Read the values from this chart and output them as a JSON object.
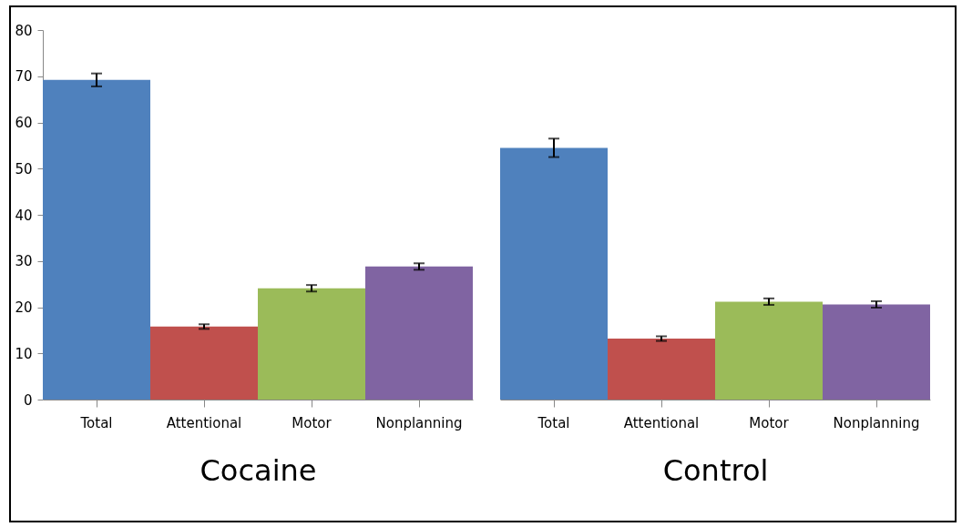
{
  "chart_data": [
    {
      "type": "bar",
      "xlabel": "Cocaine",
      "categories": [
        "Total",
        "Attentional",
        "Motor",
        "Nonplanning"
      ],
      "values": [
        69.2,
        15.8,
        24.1,
        28.8
      ],
      "errors": [
        1.4,
        0.5,
        0.7,
        0.7
      ],
      "colors": [
        "#4f81bd",
        "#c0504d",
        "#9bbb59",
        "#8064a2"
      ],
      "ylim": [
        0,
        80
      ],
      "yticks": [
        0,
        10,
        20,
        30,
        40,
        50,
        60,
        70,
        80
      ]
    },
    {
      "type": "bar",
      "xlabel": "Control",
      "categories": [
        "Total",
        "Attentional",
        "Motor",
        "Nonplanning"
      ],
      "values": [
        54.5,
        13.2,
        21.2,
        20.6
      ],
      "errors": [
        2.0,
        0.5,
        0.7,
        0.7
      ],
      "colors": [
        "#4f81bd",
        "#c0504d",
        "#9bbb59",
        "#8064a2"
      ],
      "ylim": [
        0,
        80
      ],
      "yticks": [
        0,
        10,
        20,
        30,
        40,
        50,
        60,
        70,
        80
      ],
      "tick_labels": "x"
    }
  ]
}
